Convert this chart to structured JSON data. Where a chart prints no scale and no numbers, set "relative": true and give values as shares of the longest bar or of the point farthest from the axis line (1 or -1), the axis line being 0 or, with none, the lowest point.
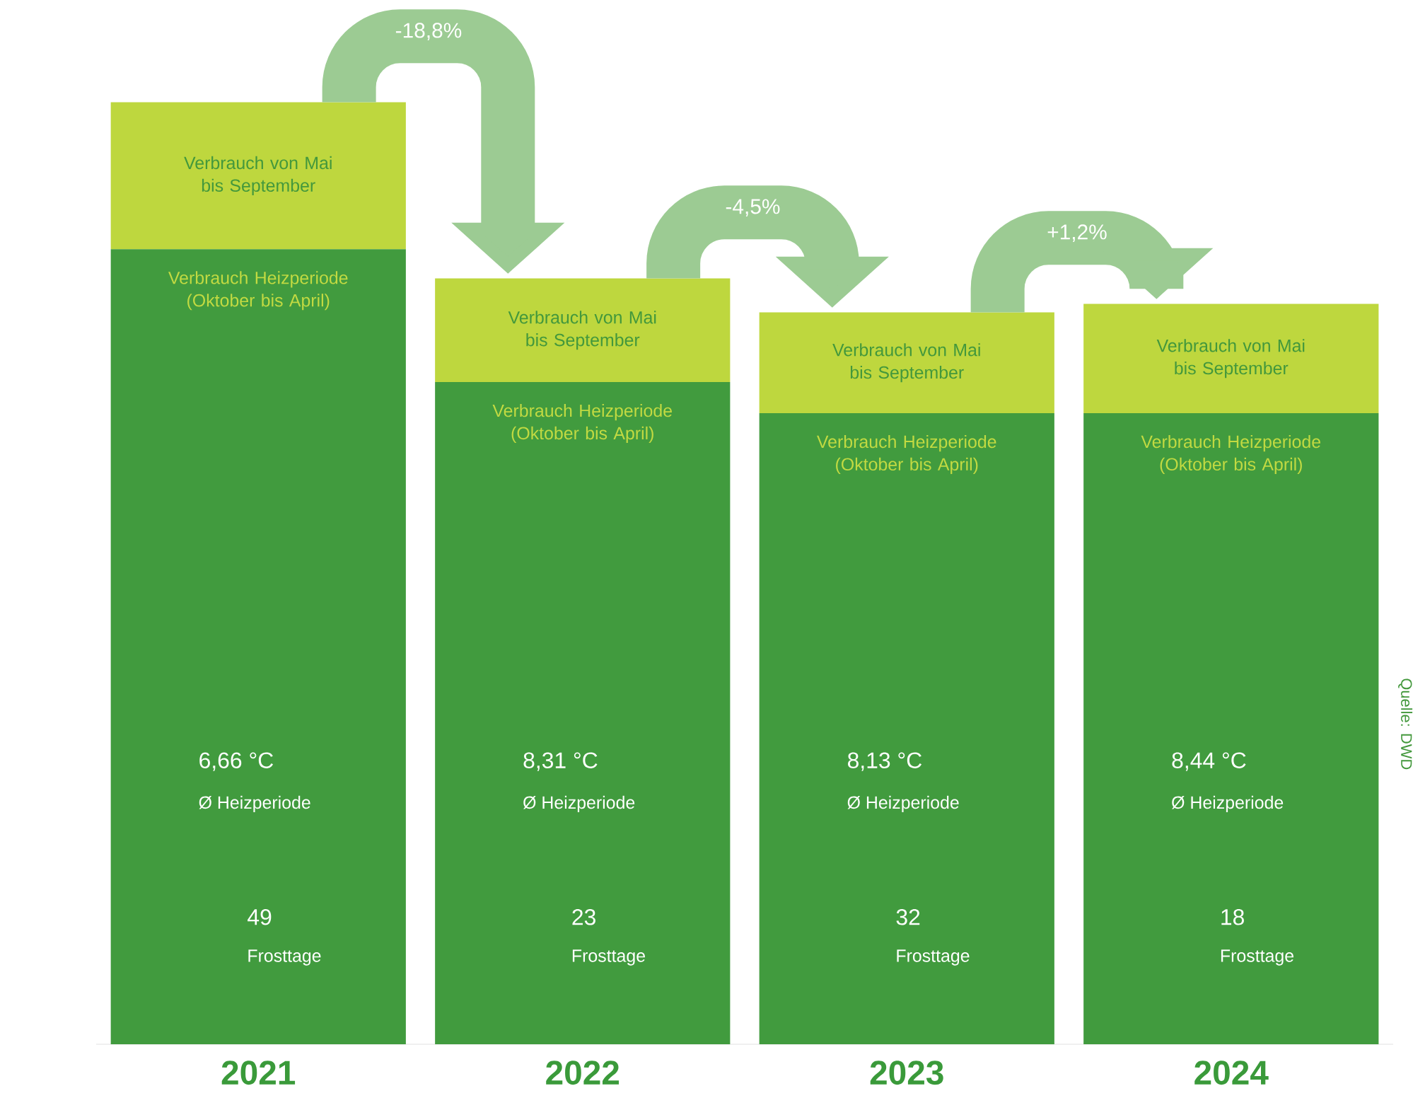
{
  "chart_data": {
    "type": "bar",
    "stacked": true,
    "relative": true,
    "categories": [
      "2021",
      "2022",
      "2023",
      "2024"
    ],
    "series": [
      {
        "name": "Verbrauch Heizperiode (Oktober bis April)",
        "color": "#419b3e",
        "values": [
          0.844,
          0.703,
          0.67,
          0.67
        ]
      },
      {
        "name": "Verbrauch von Mai bis September",
        "color": "#bed73e",
        "values": [
          0.156,
          0.11,
          0.107,
          0.116
        ]
      }
    ],
    "annotations": [
      "-18,8%",
      "-4,5%",
      "+1,2%",
      "6,66 °C",
      "Ø Heizperiode",
      "49",
      "Frosttage",
      "8,31 °C",
      "Ø Heizperiode",
      "23",
      "Frosttage",
      "8,13 °C",
      "Ø Heizperiode",
      "32",
      "Frosttage",
      "8,44 °C",
      "Ø Heizperiode",
      "18",
      "Frosttage",
      "Quelle: DWD"
    ]
  }
}
